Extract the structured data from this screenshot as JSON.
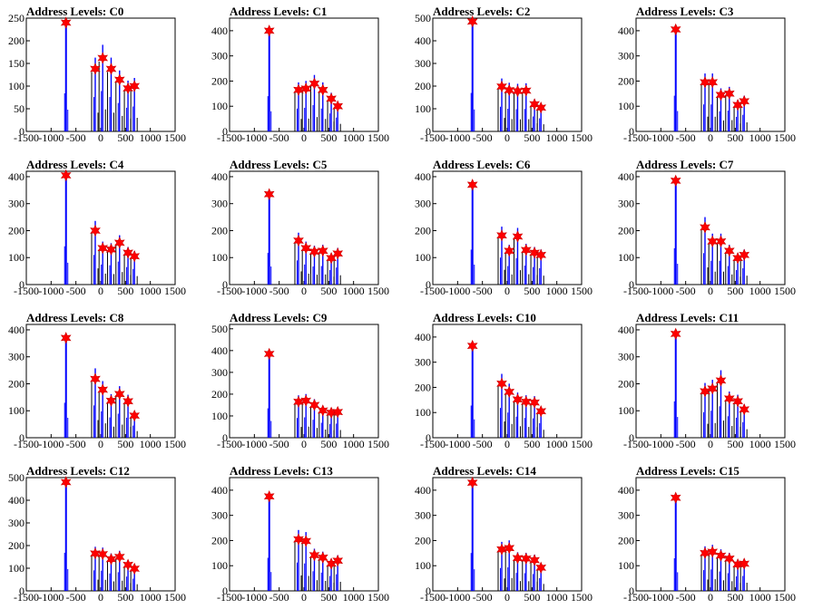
{
  "chart_data": [
    {
      "type": "bar",
      "title": "Address Levels: C0",
      "xlim": [
        -1500,
        1500
      ],
      "ylim": [
        0,
        250
      ],
      "xticks": [
        "-1500",
        "-1000",
        "-500",
        "0",
        "500",
        "1000",
        "1500"
      ],
      "yticks": [
        "0",
        "50",
        "100",
        "150",
        "200",
        "250"
      ],
      "peaks": [
        {
          "x": -700,
          "y": 240
        },
        {
          "x": -110,
          "y": 138
        },
        {
          "x": 40,
          "y": 162
        },
        {
          "x": 210,
          "y": 138
        },
        {
          "x": 380,
          "y": 114
        },
        {
          "x": 550,
          "y": 95
        },
        {
          "x": 680,
          "y": 100
        }
      ]
    },
    {
      "type": "bar",
      "title": "Address Levels: C1",
      "xlim": [
        -1500,
        1500
      ],
      "ylim": [
        0,
        450
      ],
      "xticks": [
        "-1500",
        "-1000",
        "-500",
        "0",
        "500",
        "1000",
        "1500"
      ],
      "yticks": [
        "0",
        "100",
        "200",
        "300",
        "400"
      ],
      "peaks": [
        {
          "x": -700,
          "y": 400
        },
        {
          "x": -110,
          "y": 165
        },
        {
          "x": 40,
          "y": 170
        },
        {
          "x": 210,
          "y": 190
        },
        {
          "x": 380,
          "y": 165
        },
        {
          "x": 550,
          "y": 130
        },
        {
          "x": 680,
          "y": 100
        }
      ]
    },
    {
      "type": "bar",
      "title": "Address Levels: C2",
      "xlim": [
        -1500,
        1500
      ],
      "ylim": [
        0,
        500
      ],
      "xticks": [
        "-1500",
        "-1000",
        "-500",
        "0",
        "500",
        "1000",
        "1500"
      ],
      "yticks": [
        "0",
        "100",
        "200",
        "300",
        "400",
        "500"
      ],
      "peaks": [
        {
          "x": -700,
          "y": 485
        },
        {
          "x": -110,
          "y": 198
        },
        {
          "x": 40,
          "y": 182
        },
        {
          "x": 210,
          "y": 178
        },
        {
          "x": 380,
          "y": 180
        },
        {
          "x": 550,
          "y": 120
        },
        {
          "x": 680,
          "y": 105
        }
      ]
    },
    {
      "type": "bar",
      "title": "Address Levels: C3",
      "xlim": [
        -1500,
        1500
      ],
      "ylim": [
        0,
        450
      ],
      "xticks": [
        "-1500",
        "-1000",
        "-500",
        "0",
        "500",
        "1000",
        "1500"
      ],
      "yticks": [
        "0",
        "100",
        "200",
        "300",
        "400"
      ],
      "peaks": [
        {
          "x": -700,
          "y": 405
        },
        {
          "x": -110,
          "y": 195
        },
        {
          "x": 40,
          "y": 195
        },
        {
          "x": 210,
          "y": 145
        },
        {
          "x": 380,
          "y": 150
        },
        {
          "x": 550,
          "y": 105
        },
        {
          "x": 680,
          "y": 120
        }
      ]
    },
    {
      "type": "bar",
      "title": "Address Levels: C4",
      "xlim": [
        -1500,
        1500
      ],
      "ylim": [
        0,
        420
      ],
      "xticks": [
        "-1500",
        "-1000",
        "-500",
        "0",
        "500",
        "1000",
        "1500"
      ],
      "yticks": [
        "0",
        "100",
        "200",
        "300",
        "400"
      ],
      "peaks": [
        {
          "x": -700,
          "y": 405
        },
        {
          "x": -110,
          "y": 200
        },
        {
          "x": 40,
          "y": 135
        },
        {
          "x": 210,
          "y": 130
        },
        {
          "x": 380,
          "y": 155
        },
        {
          "x": 550,
          "y": 118
        },
        {
          "x": 680,
          "y": 105
        }
      ]
    },
    {
      "type": "bar",
      "title": "Address Levels: C5",
      "xlim": [
        -1500,
        1500
      ],
      "ylim": [
        0,
        420
      ],
      "xticks": [
        "-1500",
        "-1000",
        "-500",
        "0",
        "500",
        "1000",
        "1500"
      ],
      "yticks": [
        "0",
        "100",
        "200",
        "300",
        "400"
      ],
      "peaks": [
        {
          "x": -700,
          "y": 335
        },
        {
          "x": -110,
          "y": 163
        },
        {
          "x": 40,
          "y": 135
        },
        {
          "x": 210,
          "y": 122
        },
        {
          "x": 380,
          "y": 125
        },
        {
          "x": 550,
          "y": 98
        },
        {
          "x": 680,
          "y": 115
        }
      ]
    },
    {
      "type": "bar",
      "title": "Address Levels: C6",
      "xlim": [
        -1500,
        1500
      ],
      "ylim": [
        0,
        420
      ],
      "xticks": [
        "-1500",
        "-1000",
        "-500",
        "0",
        "500",
        "1000",
        "1500"
      ],
      "yticks": [
        "0",
        "100",
        "200",
        "300",
        "400"
      ],
      "peaks": [
        {
          "x": -700,
          "y": 370
        },
        {
          "x": -110,
          "y": 182
        },
        {
          "x": 40,
          "y": 125
        },
        {
          "x": 210,
          "y": 178
        },
        {
          "x": 380,
          "y": 128
        },
        {
          "x": 550,
          "y": 118
        },
        {
          "x": 680,
          "y": 110
        }
      ]
    },
    {
      "type": "bar",
      "title": "Address Levels: C7",
      "xlim": [
        -1500,
        1500
      ],
      "ylim": [
        0,
        420
      ],
      "xticks": [
        "-1500",
        "-1000",
        "-500",
        "0",
        "500",
        "1000",
        "1500"
      ],
      "yticks": [
        "0",
        "100",
        "200",
        "300",
        "400"
      ],
      "peaks": [
        {
          "x": -700,
          "y": 385
        },
        {
          "x": -110,
          "y": 212
        },
        {
          "x": 40,
          "y": 160
        },
        {
          "x": 210,
          "y": 160
        },
        {
          "x": 380,
          "y": 125
        },
        {
          "x": 550,
          "y": 98
        },
        {
          "x": 680,
          "y": 110
        }
      ]
    },
    {
      "type": "bar",
      "title": "Address Levels: C8",
      "xlim": [
        -1500,
        1500
      ],
      "ylim": [
        0,
        420
      ],
      "xticks": [
        "-1500",
        "-1000",
        "-500",
        "0",
        "500",
        "1000",
        "1500"
      ],
      "yticks": [
        "0",
        "100",
        "200",
        "300",
        "400"
      ],
      "peaks": [
        {
          "x": -700,
          "y": 370
        },
        {
          "x": -110,
          "y": 218
        },
        {
          "x": 40,
          "y": 178
        },
        {
          "x": 210,
          "y": 137
        },
        {
          "x": 380,
          "y": 162
        },
        {
          "x": 550,
          "y": 135
        },
        {
          "x": 680,
          "y": 82
        }
      ]
    },
    {
      "type": "bar",
      "title": "Address Levels: C9",
      "xlim": [
        -1500,
        1500
      ],
      "ylim": [
        0,
        520
      ],
      "xticks": [
        "-1500",
        "-1000",
        "-500",
        "0",
        "500",
        "1000",
        "1500"
      ],
      "yticks": [
        "0",
        "100",
        "200",
        "300",
        "400",
        "500"
      ],
      "peaks": [
        {
          "x": -700,
          "y": 385
        },
        {
          "x": -110,
          "y": 165
        },
        {
          "x": 40,
          "y": 170
        },
        {
          "x": 210,
          "y": 150
        },
        {
          "x": 380,
          "y": 125
        },
        {
          "x": 550,
          "y": 115
        },
        {
          "x": 680,
          "y": 118
        }
      ]
    },
    {
      "type": "bar",
      "title": "Address Levels: C10",
      "xlim": [
        -1500,
        1500
      ],
      "ylim": [
        0,
        450
      ],
      "xticks": [
        "-1500",
        "-1000",
        "-500",
        "0",
        "500",
        "1000",
        "1500"
      ],
      "yticks": [
        "0",
        "100",
        "200",
        "300",
        "400"
      ],
      "peaks": [
        {
          "x": -700,
          "y": 365
        },
        {
          "x": -110,
          "y": 215
        },
        {
          "x": 40,
          "y": 182
        },
        {
          "x": 210,
          "y": 152
        },
        {
          "x": 380,
          "y": 143
        },
        {
          "x": 550,
          "y": 140
        },
        {
          "x": 680,
          "y": 105
        }
      ]
    },
    {
      "type": "bar",
      "title": "Address Levels: C11",
      "xlim": [
        -1500,
        1500
      ],
      "ylim": [
        0,
        420
      ],
      "xticks": [
        "-1500",
        "-1000",
        "-500",
        "0",
        "500",
        "1000",
        "1500"
      ],
      "yticks": [
        "0",
        "100",
        "200",
        "300",
        "400"
      ],
      "peaks": [
        {
          "x": -700,
          "y": 385
        },
        {
          "x": -110,
          "y": 172
        },
        {
          "x": 40,
          "y": 182
        },
        {
          "x": 210,
          "y": 212
        },
        {
          "x": 380,
          "y": 145
        },
        {
          "x": 550,
          "y": 135
        },
        {
          "x": 680,
          "y": 105
        }
      ]
    },
    {
      "type": "bar",
      "title": "Address Levels: C12",
      "xlim": [
        -1500,
        1500
      ],
      "ylim": [
        0,
        500
      ],
      "xticks": [
        "-1500",
        "-1000",
        "-500",
        "0",
        "500",
        "1000",
        "1500"
      ],
      "yticks": [
        "0",
        "100",
        "200",
        "300",
        "400",
        "500"
      ],
      "peaks": [
        {
          "x": -700,
          "y": 480
        },
        {
          "x": -110,
          "y": 165
        },
        {
          "x": 40,
          "y": 162
        },
        {
          "x": 210,
          "y": 140
        },
        {
          "x": 380,
          "y": 150
        },
        {
          "x": 550,
          "y": 115
        },
        {
          "x": 680,
          "y": 98
        }
      ]
    },
    {
      "type": "bar",
      "title": "Address Levels: C13",
      "xlim": [
        -1500,
        1500
      ],
      "ylim": [
        0,
        450
      ],
      "xticks": [
        "-1500",
        "-1000",
        "-500",
        "0",
        "500",
        "1000",
        "1500"
      ],
      "yticks": [
        "0",
        "100",
        "200",
        "300",
        "400"
      ],
      "peaks": [
        {
          "x": -700,
          "y": 375
        },
        {
          "x": -110,
          "y": 205
        },
        {
          "x": 40,
          "y": 198
        },
        {
          "x": 210,
          "y": 142
        },
        {
          "x": 380,
          "y": 132
        },
        {
          "x": 550,
          "y": 108
        },
        {
          "x": 680,
          "y": 120
        }
      ]
    },
    {
      "type": "bar",
      "title": "Address Levels: C14",
      "xlim": [
        -1500,
        1500
      ],
      "ylim": [
        0,
        450
      ],
      "xticks": [
        "-1500",
        "-1000",
        "-500",
        "0",
        "500",
        "1000",
        "1500"
      ],
      "yticks": [
        "0",
        "100",
        "200",
        "300",
        "400"
      ],
      "peaks": [
        {
          "x": -700,
          "y": 430
        },
        {
          "x": -110,
          "y": 165
        },
        {
          "x": 40,
          "y": 170
        },
        {
          "x": 210,
          "y": 130
        },
        {
          "x": 380,
          "y": 128
        },
        {
          "x": 550,
          "y": 122
        },
        {
          "x": 680,
          "y": 92
        }
      ]
    },
    {
      "type": "bar",
      "title": "Address Levels: C15",
      "xlim": [
        -1500,
        1500
      ],
      "ylim": [
        0,
        450
      ],
      "xticks": [
        "-1500",
        "-1000",
        "-500",
        "0",
        "500",
        "1000",
        "1500"
      ],
      "yticks": [
        "0",
        "100",
        "200",
        "300",
        "400"
      ],
      "peaks": [
        {
          "x": -700,
          "y": 370
        },
        {
          "x": -110,
          "y": 150
        },
        {
          "x": 40,
          "y": 155
        },
        {
          "x": 210,
          "y": 140
        },
        {
          "x": 380,
          "y": 128
        },
        {
          "x": 550,
          "y": 105
        },
        {
          "x": 680,
          "y": 108
        }
      ]
    }
  ],
  "colors": {
    "bars": "#0000ff",
    "side_bars": "#000000",
    "marker": "#ff0000",
    "marker_outline": "#cc0000",
    "frame": "#000000"
  }
}
